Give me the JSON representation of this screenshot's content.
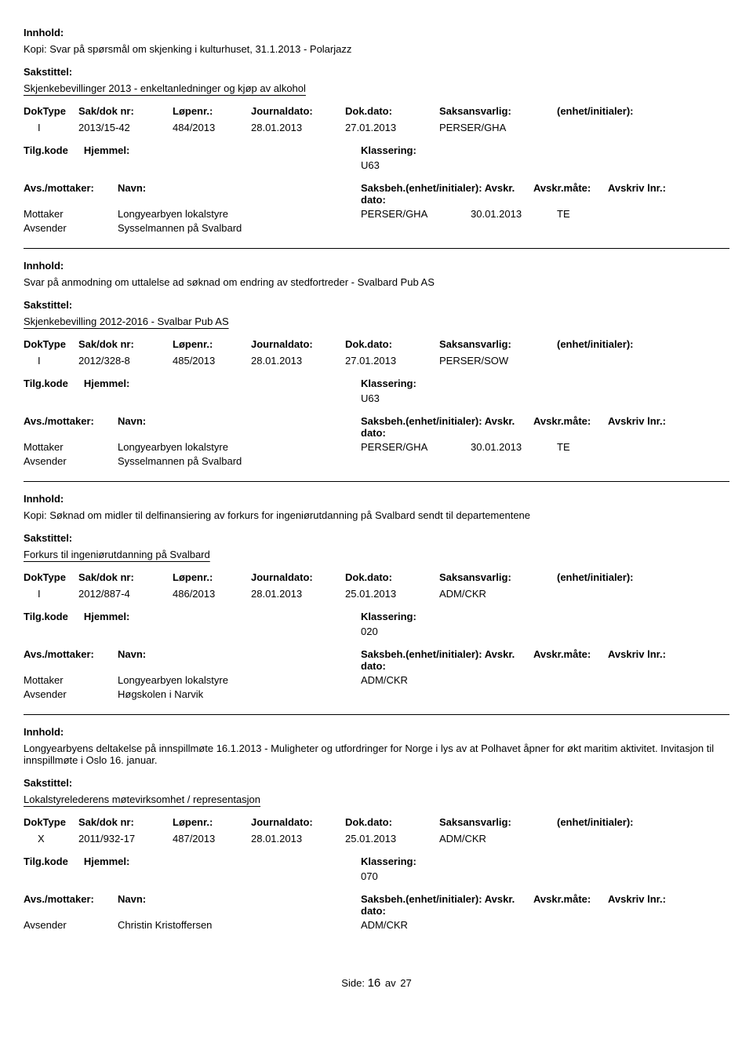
{
  "columns": {
    "doktype": "DokType",
    "sakdok": "Sak/dok nr:",
    "lopenr": "Løpenr.:",
    "journal": "Journaldato:",
    "dokdato": "Dok.dato:",
    "saksans": "Saksansvarlig:",
    "enhet": "(enhet/initialer):",
    "tilgkode": "Tilg.kode",
    "hjemmel": "Hjemmel:",
    "klassering": "Klassering:",
    "avs": "Avs./mottaker:",
    "navn": "Navn:",
    "saksbeh": "Saksbeh.(enhet/initialer):",
    "avskrdato": "Avskr. dato:",
    "avskrmate": "Avskr.måte:",
    "avskrlnr": "Avskriv lnr.:"
  },
  "labels": {
    "innhold": "Innhold:",
    "sakstittel": "Sakstittel:",
    "mottaker": "Mottaker",
    "avsender": "Avsender"
  },
  "records": [
    {
      "innhold": "Kopi: Svar på spørsmål om skjenking i kulturhuset, 31.1.2013 - Polarjazz",
      "sakstittel": "Skjenkebevillinger 2013 - enkeltanledninger og kjøp av alkohol",
      "doktype": "I",
      "sakdok": "2013/15-42",
      "lopenr": "484/2013",
      "journaldato": "28.01.2013",
      "dokdato": "27.01.2013",
      "saksansvarlig": "PERSER/GHA",
      "klassering": "U63",
      "parties": [
        {
          "role": "Mottaker",
          "name": "Longyearbyen lokalstyre",
          "code": "PERSER/GHA",
          "date": "30.01.2013",
          "te": "TE"
        },
        {
          "role": "Avsender",
          "name": "Sysselmannen på Svalbard",
          "code": "",
          "date": "",
          "te": ""
        }
      ]
    },
    {
      "innhold": "Svar på anmodning om uttalelse ad søknad om endring av stedfortreder - Svalbard Pub AS",
      "sakstittel": "Skjenkebevilling 2012-2016 - Svalbar Pub AS",
      "doktype": "I",
      "sakdok": "2012/328-8",
      "lopenr": "485/2013",
      "journaldato": "28.01.2013",
      "dokdato": "27.01.2013",
      "saksansvarlig": "PERSER/SOW",
      "klassering": "U63",
      "parties": [
        {
          "role": "Mottaker",
          "name": "Longyearbyen lokalstyre",
          "code": "PERSER/GHA",
          "date": "30.01.2013",
          "te": "TE"
        },
        {
          "role": "Avsender",
          "name": "Sysselmannen på Svalbard",
          "code": "",
          "date": "",
          "te": ""
        }
      ]
    },
    {
      "innhold": "Kopi: Søknad om midler til delfinansiering av forkurs for ingeniørutdanning på Svalbard sendt til departementene",
      "sakstittel": "Forkurs til ingeniørutdanning på Svalbard",
      "doktype": "I",
      "sakdok": "2012/887-4",
      "lopenr": "486/2013",
      "journaldato": "28.01.2013",
      "dokdato": "25.01.2013",
      "saksansvarlig": "ADM/CKR",
      "klassering": "020",
      "parties": [
        {
          "role": "Mottaker",
          "name": "Longyearbyen lokalstyre",
          "code": "ADM/CKR",
          "date": "",
          "te": ""
        },
        {
          "role": "Avsender",
          "name": "Høgskolen i Narvik",
          "code": "",
          "date": "",
          "te": ""
        }
      ]
    },
    {
      "innhold": "Longyearbyens deltakelse på innspillmøte 16.1.2013 - Muligheter og utfordringer for Norge i lys av at Polhavet åpner for økt maritim aktivitet. Invitasjon til innspillmøte i Oslo 16. januar.",
      "sakstittel": "Lokalstyrelederens møtevirksomhet / representasjon",
      "doktype": "X",
      "sakdok": "2011/932-17",
      "lopenr": "487/2013",
      "journaldato": "28.01.2013",
      "dokdato": "25.01.2013",
      "saksansvarlig": "ADM/CKR",
      "klassering": "070",
      "parties": [
        {
          "role": "Avsender",
          "name": "Christin Kristoffersen",
          "code": "ADM/CKR",
          "date": "",
          "te": ""
        }
      ]
    }
  ],
  "footer": {
    "label": "Side:",
    "page": "16",
    "sep": "av",
    "total": "27"
  }
}
